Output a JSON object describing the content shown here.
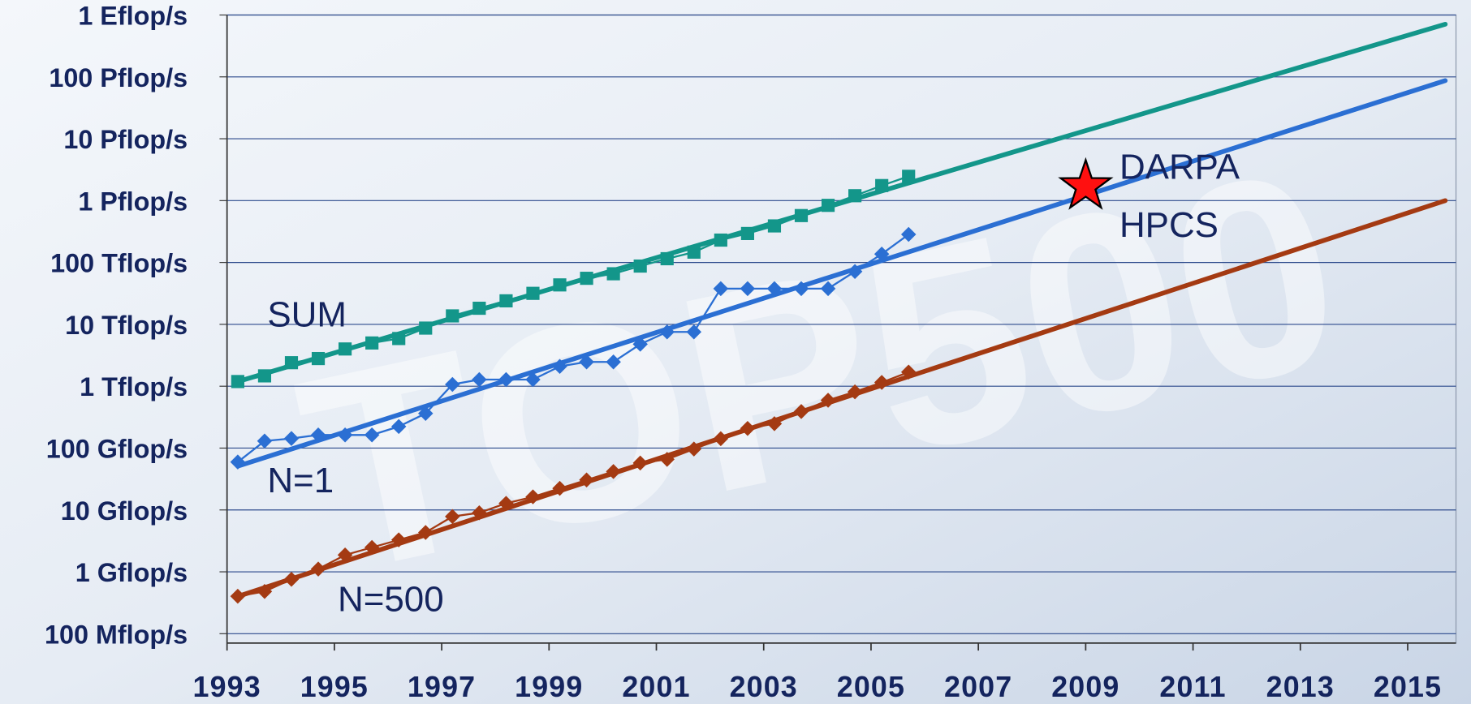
{
  "chart_data": {
    "type": "line",
    "log_y": true,
    "grid": true,
    "watermark": "TOP500",
    "xlim": [
      1993,
      2015.9
    ],
    "xticks": [
      1993,
      1995,
      1997,
      1999,
      2001,
      2003,
      2005,
      2007,
      2009,
      2011,
      2013,
      2015
    ],
    "ylim": [
      0.1,
      1000000000
    ],
    "yticks": [
      {
        "value": 0.1,
        "label": "100 Mflop/s"
      },
      {
        "value": 1,
        "label": "1 Gflop/s"
      },
      {
        "value": 10,
        "label": "10 Gflop/s"
      },
      {
        "value": 100,
        "label": "100 Gflop/s"
      },
      {
        "value": 1000,
        "label": "1 Tflop/s"
      },
      {
        "value": 10000,
        "label": "10 Tflop/s"
      },
      {
        "value": 100000,
        "label": "100 Tflop/s"
      },
      {
        "value": 1000000,
        "label": "1 Pflop/s"
      },
      {
        "value": 10000000,
        "label": "10 Pflop/s"
      },
      {
        "value": 100000000,
        "label": "100 Pflop/s"
      },
      {
        "value": 1000000000,
        "label": "1 Eflop/s"
      }
    ],
    "x": [
      1993.2,
      1993.7,
      1994.2,
      1994.7,
      1995.2,
      1995.7,
      1996.2,
      1996.7,
      1997.2,
      1997.7,
      1998.2,
      1998.7,
      1999.2,
      1999.7,
      2000.2,
      2000.7,
      2001.2,
      2001.7,
      2002.2,
      2002.7,
      2003.2,
      2003.7,
      2004.2,
      2004.7,
      2005.2,
      2005.7
    ],
    "series": [
      {
        "name": "SUM",
        "color": "#13968a",
        "marker": "square",
        "values": [
          1190,
          1470,
          2400,
          2800,
          4000,
          5000,
          5900,
          8700,
          13700,
          18200,
          24000,
          31700,
          43400,
          55500,
          65700,
          87500,
          115000,
          147000,
          230000,
          294000,
          390000,
          573000,
          838000,
          1200000,
          1750000,
          2470000
        ],
        "trend": {
          "x": [
            1993.2,
            2015.7
          ],
          "values": [
            1190,
            710000000
          ]
        }
      },
      {
        "name": "N=1",
        "color": "#2b6fd3",
        "marker": "diamond",
        "values": [
          59.5,
          130,
          143,
          163,
          163,
          163,
          223,
          363,
          1070,
          1280,
          1280,
          1280,
          2090,
          2470,
          2470,
          4780,
          7540,
          7540,
          37800,
          37800,
          37800,
          37800,
          37800,
          71500,
          137000,
          284000
        ],
        "trend": {
          "x": [
            1993.2,
            2015.7
          ],
          "values": [
            51,
            87000000
          ]
        }
      },
      {
        "name": "N=500",
        "color": "#a43a12",
        "marker": "diamond",
        "values": [
          0.403,
          0.481,
          0.757,
          1.11,
          1.87,
          2.48,
          3.28,
          4.33,
          7.83,
          9.01,
          12.8,
          16.3,
          22.3,
          30.5,
          41.8,
          57.3,
          65.8,
          96.6,
          142,
          208,
          248,
          390,
          593,
          811,
          1150,
          1690
        ],
        "trend": {
          "x": [
            1993.2,
            2015.7
          ],
          "values": [
            0.4,
            1000000
          ]
        }
      }
    ],
    "star": {
      "x": 2009,
      "value": 1700000,
      "color": "#ff1010",
      "labels": [
        "DARPA",
        "HPCS"
      ]
    }
  }
}
